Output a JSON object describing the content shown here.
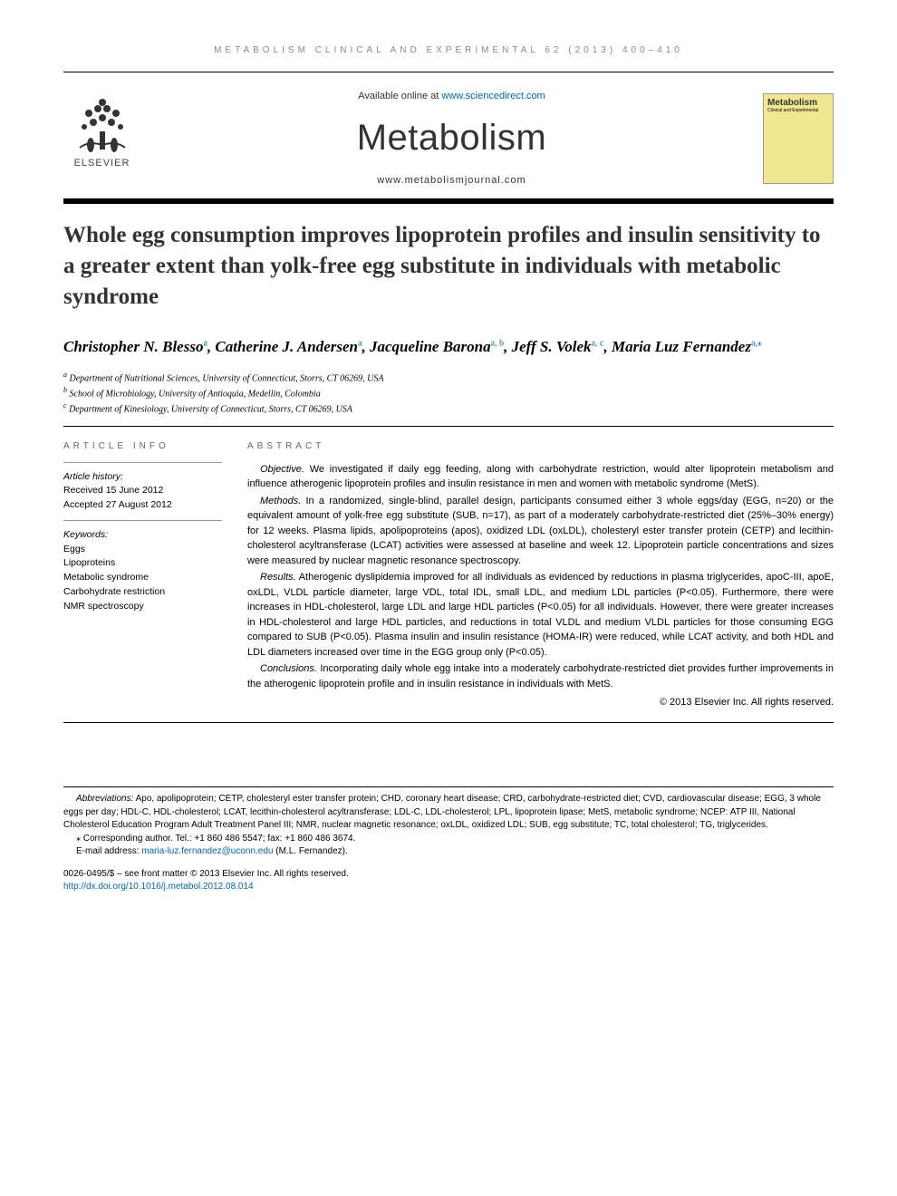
{
  "running_head": "METABOLISM CLINICAL AND EXPERIMENTAL 62 (2013) 400–410",
  "header": {
    "available_prefix": "Available online at ",
    "available_url": "www.sciencedirect.com",
    "journal_title": "Metabolism",
    "journal_url": "www.metabolismjournal.com",
    "elsevier_label": "ELSEVIER",
    "cover_title": "Metabolism",
    "cover_subtitle": "Clinical and Experimental"
  },
  "article": {
    "title": "Whole egg consumption improves lipoprotein profiles and insulin sensitivity to a greater extent than yolk-free egg substitute in individuals with metabolic syndrome",
    "authors_html": "Christopher N. Blesso<sup>a</sup>, Catherine J. Andersen<sup>a</sup>, Jacqueline Barona<sup>a, b</sup>, Jeff S. Volek<sup>a, c</sup>, Maria Luz Fernandez<sup>a,⁎</sup>",
    "affiliations": [
      {
        "mark": "a",
        "text": "Department of Nutritional Sciences, University of Connecticut, Storrs, CT 06269, USA"
      },
      {
        "mark": "b",
        "text": "School of Microbiology, University of Antioquia, Medellin, Colombia"
      },
      {
        "mark": "c",
        "text": "Department of Kinesiology, University of Connecticut, Storrs, CT 06269, USA"
      }
    ]
  },
  "info": {
    "label": "ARTICLE INFO",
    "history_label": "Article history:",
    "received": "Received 15 June 2012",
    "accepted": "Accepted 27 August 2012",
    "keywords_label": "Keywords:",
    "keywords": [
      "Eggs",
      "Lipoproteins",
      "Metabolic syndrome",
      "Carbohydrate restriction",
      "NMR spectroscopy"
    ]
  },
  "abstract": {
    "label": "ABSTRACT",
    "paragraphs": [
      {
        "heading": "Objective.",
        "text": "We investigated if daily egg feeding, along with carbohydrate restriction, would alter lipoprotein metabolism and influence atherogenic lipoprotein profiles and insulin resistance in men and women with metabolic syndrome (MetS)."
      },
      {
        "heading": "Methods.",
        "text": "In a randomized, single-blind, parallel design, participants consumed either 3 whole eggs/day (EGG, n=20) or the equivalent amount of yolk-free egg substitute (SUB, n=17), as part of a moderately carbohydrate-restricted diet (25%–30% energy) for 12 weeks. Plasma lipids, apolipoproteins (apos), oxidized LDL (oxLDL), cholesteryl ester transfer protein (CETP) and lecithin-cholesterol acyltransferase (LCAT) activities were assessed at baseline and week 12. Lipoprotein particle concentrations and sizes were measured by nuclear magnetic resonance spectroscopy."
      },
      {
        "heading": "Results.",
        "text": "Atherogenic dyslipidemia improved for all individuals as evidenced by reductions in plasma triglycerides, apoC-III, apoE, oxLDL, VLDL particle diameter, large VDL, total IDL, small LDL, and medium LDL particles (P<0.05). Furthermore, there were increases in HDL-cholesterol, large LDL and large HDL particles (P<0.05) for all individuals. However, there were greater increases in HDL-cholesterol and large HDL particles, and reductions in total VLDL and medium VLDL particles for those consuming EGG compared to SUB (P<0.05). Plasma insulin and insulin resistance (HOMA-IR) were reduced, while LCAT activity, and both HDL and LDL diameters increased over time in the EGG group only (P<0.05)."
      },
      {
        "heading": "Conclusions.",
        "text": "Incorporating daily whole egg intake into a moderately carbohydrate-restricted diet provides further improvements in the atherogenic lipoprotein profile and in insulin resistance in individuals with MetS."
      }
    ],
    "copyright": "© 2013 Elsevier Inc. All rights reserved."
  },
  "footnotes": {
    "abbrev_label": "Abbreviations:",
    "abbrev_text": "Apo, apolipoprotein; CETP, cholesteryl ester transfer protein; CHD, coronary heart disease; CRD, carbohydrate-restricted diet; CVD, cardiovascular disease; EGG, 3 whole eggs per day; HDL-C, HDL-cholesterol; LCAT, lecithin-cholesterol acyltransferase; LDL-C, LDL-cholesterol; LPL, lipoprotein lipase; MetS, metabolic syndrome; NCEP: ATP III, National Cholesterol Education Program Adult Treatment Panel III; NMR, nuclear magnetic resonance; oxLDL, oxidized LDL; SUB, egg substitute; TC, total cholesterol; TG, triglycerides.",
    "corresponding": "⁎ Corresponding author. Tel.: +1 860 486 5547; fax: +1 860 486 3674.",
    "email_label": "E-mail address: ",
    "email": "maria-luz.fernandez@uconn.edu",
    "email_attribution": " (M.L. Fernandez)."
  },
  "bottom": {
    "line1": "0026-0495/$ – see front matter © 2013 Elsevier Inc. All rights reserved.",
    "doi": "http://dx.doi.org/10.1016/j.metabol.2012.08.014"
  },
  "colors": {
    "link": "#0066aa",
    "text": "#000000",
    "grey": "#888888",
    "cover_bg": "#f0e890"
  }
}
